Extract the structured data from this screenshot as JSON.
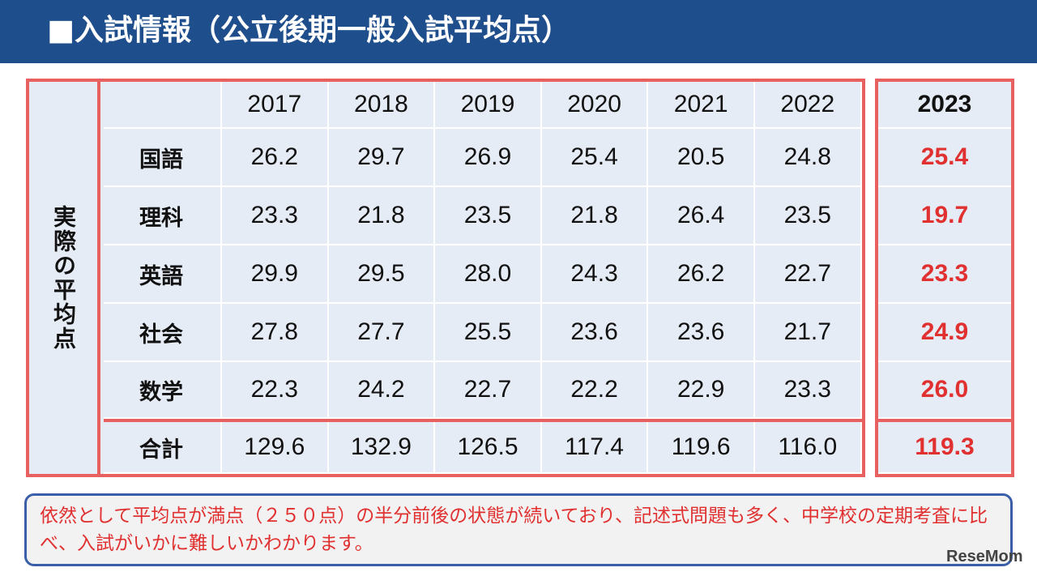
{
  "header": {
    "title": "■入試情報（公立後期一般入試平均点）"
  },
  "table": {
    "side_label": "実際の平均点",
    "years": [
      "2017",
      "2018",
      "2019",
      "2020",
      "2021",
      "2022"
    ],
    "rows": [
      {
        "subject": "国語",
        "values": [
          "26.2",
          "29.7",
          "26.9",
          "25.4",
          "20.5",
          "24.8"
        ]
      },
      {
        "subject": "理科",
        "values": [
          "23.3",
          "21.8",
          "23.5",
          "21.8",
          "26.4",
          "23.5"
        ]
      },
      {
        "subject": "英語",
        "values": [
          "29.9",
          "29.5",
          "28.0",
          "24.3",
          "26.2",
          "22.7"
        ]
      },
      {
        "subject": "社会",
        "values": [
          "27.8",
          "27.7",
          "25.5",
          "23.6",
          "23.6",
          "21.7"
        ]
      },
      {
        "subject": "数学",
        "values": [
          "22.3",
          "24.2",
          "22.7",
          "22.2",
          "22.9",
          "23.3"
        ]
      }
    ],
    "total": {
      "subject": "合計",
      "values": [
        "129.6",
        "132.9",
        "126.5",
        "117.4",
        "119.6",
        "116.0"
      ]
    }
  },
  "col_2023": {
    "year": "2023",
    "values": [
      "25.4",
      "19.7",
      "23.3",
      "24.9",
      "26.0"
    ],
    "total": "119.3"
  },
  "note": {
    "text": "依然として平均点が満点（２５０点）の半分前後の状態が続いており、記述式問題も多く、中学校の定期考査に比べ、入試がいかに難しいかわかります。"
  },
  "logo": {
    "text": "ReseMom"
  },
  "colors": {
    "header_bg": "#1f4e8c",
    "border_red": "#e8605f",
    "cell_bg": "#e6ecf5",
    "highlight_red": "#e03030"
  }
}
